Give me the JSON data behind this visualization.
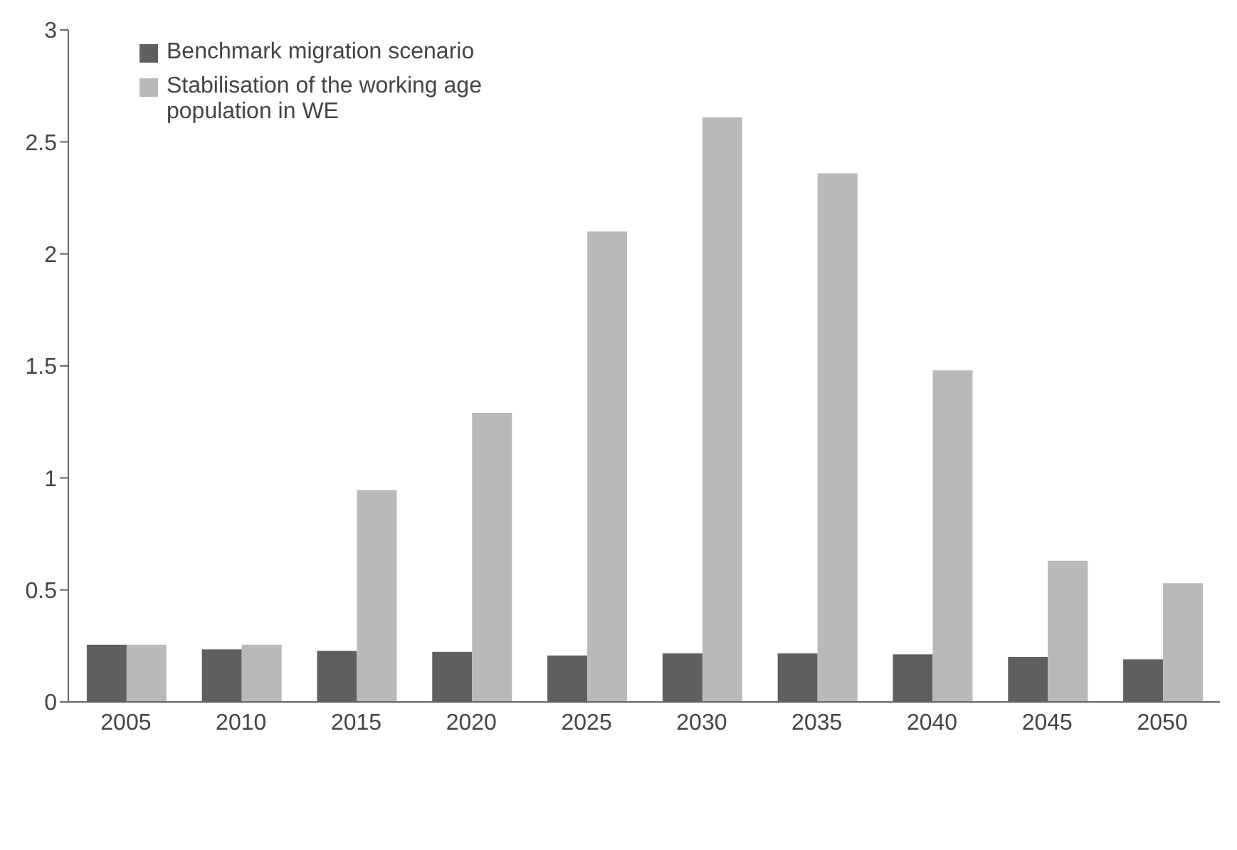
{
  "chart_data": {
    "type": "bar",
    "categories": [
      "2005",
      "2010",
      "2015",
      "2020",
      "2025",
      "2030",
      "2035",
      "2040",
      "2045",
      "2050"
    ],
    "series": [
      {
        "name": "Benchmark migration scenario",
        "color": "#5f5f5f",
        "values": [
          0.255,
          0.234,
          0.228,
          0.223,
          0.207,
          0.217,
          0.217,
          0.212,
          0.2,
          0.19
        ]
      },
      {
        "name": "Stabilisation of the working age population in WE",
        "color": "#b9b9b9",
        "values": [
          0.255,
          0.255,
          0.946,
          1.29,
          2.1,
          2.61,
          2.36,
          1.48,
          0.63,
          0.53
        ]
      }
    ],
    "ylim": [
      0,
      3
    ],
    "yticks": [
      0,
      0.5,
      1,
      1.5,
      2,
      2.5,
      3
    ],
    "grid": false,
    "legend": "top left"
  }
}
